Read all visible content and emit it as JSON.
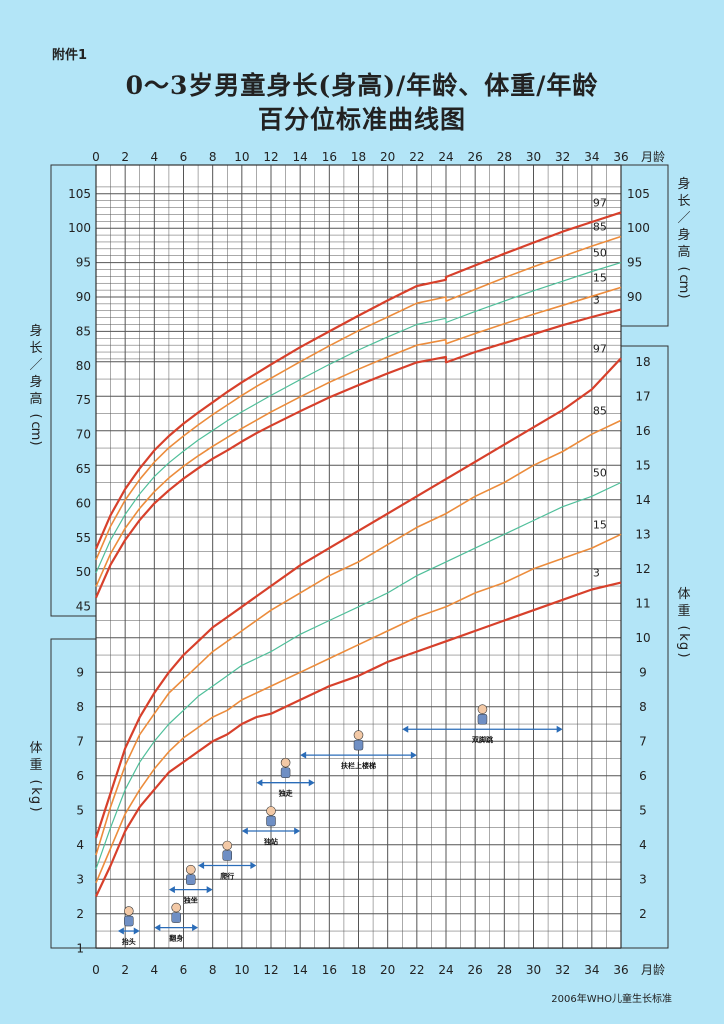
{
  "header": {
    "attachment": "附件1",
    "title_line1": "0～3岁男童身长(身高)/年龄、体重/年龄",
    "title_line2": "百分位标准曲线图"
  },
  "footer": {
    "source": "2006年WHO儿童生长标准"
  },
  "colors": {
    "background": "#b3e5f7",
    "p3_p97": "#d7402b",
    "p15_p85": "#ec8c3c",
    "p50": "#4fbf9a",
    "grid": "#555555",
    "arrow": "#2a6cb8"
  },
  "chart_data": {
    "type": "line",
    "x_ticks": [
      0,
      2,
      4,
      6,
      8,
      10,
      12,
      14,
      16,
      18,
      20,
      22,
      24,
      26,
      28,
      30,
      32,
      34,
      36
    ],
    "x_unit": "月龄",
    "xlim": [
      0,
      36
    ],
    "grid": true,
    "height": {
      "ylabel": "身长/身高 (cm)",
      "ylim": [
        45,
        105
      ],
      "left_ticks": [
        45,
        50,
        55,
        60,
        65,
        70,
        75,
        80,
        85,
        90,
        95,
        100,
        105
      ],
      "right_ticks": [
        90,
        95,
        100,
        105
      ],
      "x": [
        0,
        1,
        2,
        3,
        4,
        5,
        6,
        7,
        8,
        9,
        10,
        11,
        12,
        14,
        16,
        18,
        20,
        22,
        23.99,
        24,
        26,
        28,
        30,
        32,
        34,
        36
      ],
      "series": [
        {
          "name": "3",
          "values": [
            46.3,
            51.1,
            54.7,
            57.6,
            60.0,
            61.9,
            63.6,
            65.1,
            66.5,
            67.7,
            69.0,
            70.2,
            71.3,
            73.4,
            75.4,
            77.2,
            78.9,
            80.5,
            81.3,
            80.5,
            82.0,
            83.3,
            84.6,
            85.9,
            87.1,
            88.2
          ]
        },
        {
          "name": "15",
          "values": [
            47.9,
            52.7,
            56.4,
            59.3,
            61.7,
            63.7,
            65.4,
            66.9,
            68.3,
            69.6,
            70.9,
            72.1,
            73.3,
            75.5,
            77.6,
            79.5,
            81.3,
            83.0,
            83.8,
            83.2,
            84.7,
            86.1,
            87.5,
            88.8,
            90.1,
            91.4
          ]
        },
        {
          "name": "50",
          "values": [
            49.9,
            54.7,
            58.4,
            61.4,
            63.9,
            65.9,
            67.6,
            69.2,
            70.6,
            72.0,
            73.3,
            74.5,
            75.7,
            78.0,
            80.2,
            82.3,
            84.2,
            86.0,
            86.9,
            86.3,
            87.9,
            89.4,
            90.9,
            92.3,
            93.7,
            95.0
          ]
        },
        {
          "name": "85",
          "values": [
            51.8,
            56.7,
            60.5,
            63.5,
            66.0,
            68.1,
            69.8,
            71.4,
            72.9,
            74.3,
            75.7,
            77.0,
            78.2,
            80.6,
            82.9,
            85.1,
            87.1,
            89.1,
            90.0,
            89.4,
            91.1,
            92.8,
            94.4,
            95.9,
            97.4,
            98.8
          ]
        },
        {
          "name": "97",
          "values": [
            53.4,
            58.3,
            62.1,
            65.1,
            67.7,
            69.8,
            71.6,
            73.2,
            74.7,
            76.2,
            77.6,
            78.9,
            80.2,
            82.7,
            85.0,
            87.3,
            89.5,
            91.6,
            92.5,
            92.9,
            94.6,
            96.3,
            97.9,
            99.5,
            100.9,
            102.3
          ]
        }
      ]
    },
    "weight": {
      "ylabel": "体重 (kg)",
      "ylim": [
        1,
        18
      ],
      "left_ticks": [
        1,
        2,
        3,
        4,
        5,
        6,
        7,
        8,
        9
      ],
      "right_ticks": [
        2,
        3,
        4,
        5,
        6,
        7,
        8,
        9,
        10,
        11,
        12,
        13,
        14,
        15,
        16,
        17,
        18
      ],
      "x": [
        0,
        1,
        2,
        3,
        4,
        5,
        6,
        7,
        8,
        9,
        10,
        11,
        12,
        14,
        16,
        18,
        20,
        22,
        24,
        26,
        28,
        30,
        32,
        34,
        36
      ],
      "series": [
        {
          "name": "3",
          "values": [
            2.5,
            3.4,
            4.4,
            5.1,
            5.6,
            6.1,
            6.4,
            6.7,
            7.0,
            7.2,
            7.5,
            7.7,
            7.8,
            8.2,
            8.6,
            8.9,
            9.3,
            9.6,
            9.9,
            10.2,
            10.5,
            10.8,
            11.1,
            11.4,
            11.6
          ]
        },
        {
          "name": "15",
          "values": [
            2.9,
            3.9,
            4.9,
            5.6,
            6.2,
            6.7,
            7.1,
            7.4,
            7.7,
            7.9,
            8.2,
            8.4,
            8.6,
            9.0,
            9.4,
            9.8,
            10.2,
            10.6,
            10.9,
            11.3,
            11.6,
            12.0,
            12.3,
            12.6,
            13.0
          ]
        },
        {
          "name": "50",
          "values": [
            3.3,
            4.5,
            5.6,
            6.4,
            7.0,
            7.5,
            7.9,
            8.3,
            8.6,
            8.9,
            9.2,
            9.4,
            9.6,
            10.1,
            10.5,
            10.9,
            11.3,
            11.8,
            12.2,
            12.6,
            13.0,
            13.4,
            13.8,
            14.1,
            14.5
          ]
        },
        {
          "name": "85",
          "values": [
            3.7,
            5.1,
            6.3,
            7.2,
            7.8,
            8.4,
            8.8,
            9.2,
            9.6,
            9.9,
            10.2,
            10.5,
            10.8,
            11.3,
            11.8,
            12.2,
            12.7,
            13.2,
            13.6,
            14.1,
            14.5,
            15.0,
            15.4,
            15.9,
            16.3
          ]
        },
        {
          "name": "97",
          "values": [
            4.2,
            5.5,
            6.8,
            7.7,
            8.4,
            9.0,
            9.5,
            9.9,
            10.3,
            10.6,
            10.9,
            11.2,
            11.5,
            12.1,
            12.6,
            13.1,
            13.6,
            14.1,
            14.6,
            15.1,
            15.6,
            16.1,
            16.6,
            17.2,
            18.1
          ]
        }
      ]
    },
    "milestones": [
      {
        "label": "抬头",
        "start": 1.5,
        "end": 3,
        "weight": 1.5
      },
      {
        "label": "翻身",
        "start": 4,
        "end": 7,
        "weight": 1.6
      },
      {
        "label": "独坐",
        "start": 5,
        "end": 8,
        "weight": 2.7
      },
      {
        "label": "爬行",
        "start": 7,
        "end": 11,
        "weight": 3.4
      },
      {
        "label": "独站",
        "start": 10,
        "end": 14,
        "weight": 4.4
      },
      {
        "label": "独走",
        "start": 11,
        "end": 15,
        "weight": 5.8
      },
      {
        "label": "扶栏上楼梯",
        "start": 14,
        "end": 22,
        "weight": 6.6
      },
      {
        "label": "双脚跳",
        "start": 21,
        "end": 32,
        "weight": 7.35
      }
    ]
  }
}
